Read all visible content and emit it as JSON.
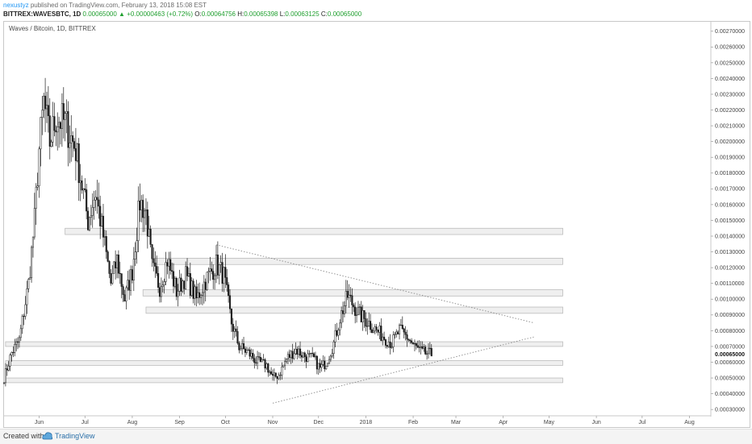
{
  "header": {
    "author": "nexustyz",
    "published": "published on TradingView.com, February 13, 2018 15:08 EST",
    "symbol": "BITTREX:WAVESBTC, 1D",
    "last": "0.00065000",
    "arrow": "▲",
    "change": "+0.00000463 (+0.72%)",
    "o_label": "O:",
    "o": "0.00064756",
    "h_label": "H:",
    "h": "0.00065398",
    "l_label": "L:",
    "l": "0.00063125",
    "c_label": "C:",
    "c": "0.00065000"
  },
  "footer": {
    "created_with": "Created with",
    "brand": "TradingView"
  },
  "colors": {
    "candle": "#1e1e1e",
    "zone_fill": "#efefef",
    "zone_border": "#b4b4b4",
    "trendline": "#8a8a8a",
    "author": "#2196f3",
    "up_green": "#21a030"
  },
  "chart_data": {
    "type": "candlestick",
    "title": "Waves / Bitcoin, 1D, BITTREX",
    "x_ticks": [
      "Jun",
      "Jul",
      "Aug",
      "Sep",
      "Oct",
      "Nov",
      "Dec",
      "2018",
      "Feb",
      "Mar",
      "Apr",
      "May",
      "Jun",
      "Jul",
      "Aug"
    ],
    "x_range": [
      "2017-05-09",
      "2018-08-15"
    ],
    "y_ticks": [
      "0.00030000",
      "0.00040000",
      "0.00050000",
      "0.00060000",
      "0.00070000",
      "0.00080000",
      "0.00090000",
      "0.00100000",
      "0.00110000",
      "0.00120000",
      "0.00130000",
      "0.00140000",
      "0.00150000",
      "0.00160000",
      "0.00170000",
      "0.00180000",
      "0.00190000",
      "0.00200000",
      "0.00210000",
      "0.00220000",
      "0.00230000",
      "0.00240000",
      "0.00250000",
      "0.00260000",
      "0.00270000"
    ],
    "y_range": [
      0.00026,
      0.00276
    ],
    "last_price_label": "0.00065000",
    "last_price": 0.00065,
    "support_resistance_zones": [
      {
        "from": "2017-06-18",
        "to": "2018-05-10",
        "low": 0.00141,
        "high": 0.00145
      },
      {
        "from": "2017-08-15",
        "to": "2018-05-10",
        "low": 0.00122,
        "high": 0.00126
      },
      {
        "from": "2017-08-08",
        "to": "2018-05-10",
        "low": 0.00102,
        "high": 0.00106
      },
      {
        "from": "2017-08-10",
        "to": "2018-05-10",
        "low": 0.00091,
        "high": 0.00095
      },
      {
        "from": "2017-05-10",
        "to": "2018-05-10",
        "low": 0.0007,
        "high": 0.00073
      },
      {
        "from": "2017-05-10",
        "to": "2018-05-10",
        "low": 0.00058,
        "high": 0.00061
      },
      {
        "from": "2017-05-10",
        "to": "2018-05-10",
        "low": 0.00047,
        "high": 0.0005
      }
    ],
    "trendlines": [
      {
        "from": [
          "2017-09-25",
          0.001345
        ],
        "to": [
          "2018-04-21",
          0.00085
        ]
      },
      {
        "from": [
          "2017-11-01",
          0.00034
        ],
        "to": [
          "2018-04-21",
          0.00076
        ]
      }
    ],
    "path": [
      [
        "2017-05-09",
        0.0005
      ],
      [
        "2017-05-14",
        0.00066
      ],
      [
        "2017-05-19",
        0.00074
      ],
      [
        "2017-05-25",
        0.0011
      ],
      [
        "2017-05-29",
        0.0015
      ],
      [
        "2017-06-01",
        0.00195
      ],
      [
        "2017-06-04",
        0.00225
      ],
      [
        "2017-06-08",
        0.002
      ],
      [
        "2017-06-12",
        0.00215
      ],
      [
        "2017-06-18",
        0.00212
      ],
      [
        "2017-06-25",
        0.00195
      ],
      [
        "2017-06-28",
        0.00178
      ],
      [
        "2017-07-03",
        0.0015
      ],
      [
        "2017-07-08",
        0.00168
      ],
      [
        "2017-07-13",
        0.0014
      ],
      [
        "2017-07-18",
        0.0011
      ],
      [
        "2017-07-22",
        0.00125
      ],
      [
        "2017-07-27",
        0.001
      ],
      [
        "2017-08-01",
        0.00118
      ],
      [
        "2017-08-06",
        0.00162
      ],
      [
        "2017-08-10",
        0.00155
      ],
      [
        "2017-08-14",
        0.0012
      ],
      [
        "2017-08-19",
        0.00108
      ],
      [
        "2017-08-24",
        0.00125
      ],
      [
        "2017-08-30",
        0.00105
      ],
      [
        "2017-09-05",
        0.00115
      ],
      [
        "2017-09-12",
        0.001
      ],
      [
        "2017-09-18",
        0.00112
      ],
      [
        "2017-09-25",
        0.00122
      ],
      [
        "2017-09-30",
        0.00115
      ],
      [
        "2017-10-05",
        0.00085
      ],
      [
        "2017-10-10",
        0.0007
      ],
      [
        "2017-10-16",
        0.00066
      ],
      [
        "2017-10-22",
        0.0006
      ],
      [
        "2017-10-28",
        0.00058
      ],
      [
        "2017-11-01",
        0.0005
      ],
      [
        "2017-11-05",
        0.00052
      ],
      [
        "2017-11-10",
        0.00062
      ],
      [
        "2017-11-16",
        0.00068
      ],
      [
        "2017-11-22",
        0.00064
      ],
      [
        "2017-11-28",
        0.00062
      ],
      [
        "2017-12-02",
        0.00056
      ],
      [
        "2017-12-06",
        0.0006
      ],
      [
        "2017-12-11",
        0.00072
      ],
      [
        "2017-12-15",
        0.00088
      ],
      [
        "2017-12-20",
        0.00102
      ],
      [
        "2017-12-24",
        0.00096
      ],
      [
        "2017-12-28",
        0.0009
      ],
      [
        "2018-01-03",
        0.00085
      ],
      [
        "2018-01-08",
        0.0008
      ],
      [
        "2018-01-13",
        0.00076
      ],
      [
        "2018-01-18",
        0.00072
      ],
      [
        "2018-01-23",
        0.0008
      ],
      [
        "2018-01-28",
        0.00076
      ],
      [
        "2018-02-02",
        0.0007
      ],
      [
        "2018-02-07",
        0.00066
      ],
      [
        "2018-02-13",
        0.00065
      ]
    ]
  }
}
